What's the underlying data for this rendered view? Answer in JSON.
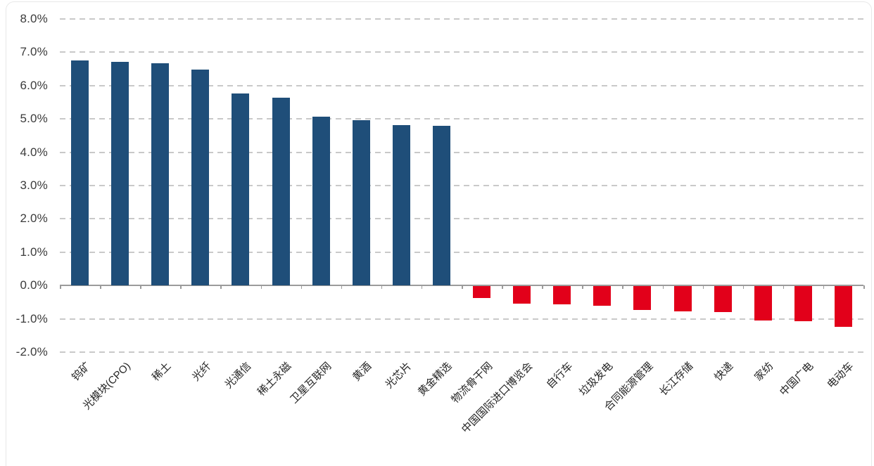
{
  "chart_data": {
    "type": "bar",
    "title": "",
    "categories": [
      "钨矿",
      "光模块(CPO)",
      "稀土",
      "光纤",
      "光通信",
      "稀土永磁",
      "卫星互联网",
      "黄酒",
      "光芯片",
      "黄金精选",
      "物流骨干网",
      "中国国际进口博览会",
      "自行车",
      "垃圾发电",
      "合同能源管理",
      "长江存储",
      "快递",
      "家纺",
      "中国广电",
      "电动车"
    ],
    "values": [
      6.76,
      6.72,
      6.67,
      6.49,
      5.77,
      5.64,
      5.07,
      4.97,
      4.82,
      4.8,
      -0.36,
      -0.52,
      -0.55,
      -0.58,
      -0.72,
      -0.75,
      -0.78,
      -1.02,
      -1.05,
      -1.22
    ],
    "unit": "%",
    "xlabel": "",
    "ylabel": "",
    "ylim": [
      -2,
      8
    ],
    "ytick_step": 1,
    "ytick_labels": [
      "8.0%",
      "7.0%",
      "6.0%",
      "5.0%",
      "4.0%",
      "3.0%",
      "2.0%",
      "1.0%",
      "0.0%",
      "-1.0%",
      "-2.0%"
    ],
    "grid": "horizontal-dashed",
    "legend": "none",
    "bar_orientation": "vertical",
    "xlabel_rotation_deg": 45,
    "colors": {
      "positive_bar": "#1F4E79",
      "negative_bar": "#E2001A",
      "gridline": "#C9C9C9",
      "axis_line": "#9B9B9B",
      "ytick_text": "#3B3B3B",
      "xtick_text": "#262626",
      "background": "#FFFFFF",
      "card_border": "#E8E8E8"
    }
  }
}
